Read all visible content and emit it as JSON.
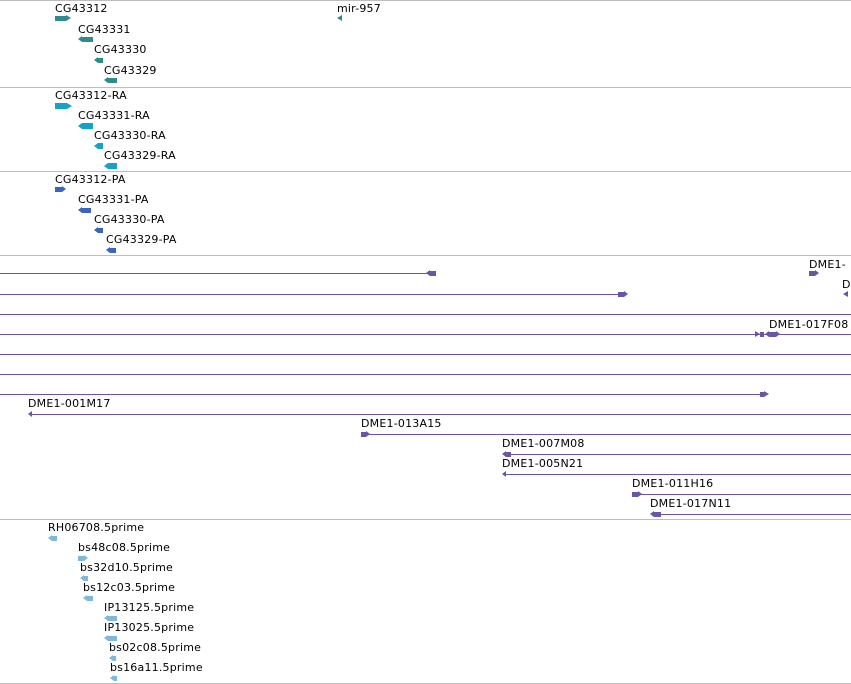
{
  "colors": {
    "gene": "#2f8c8a",
    "transcript": "#16a1c7",
    "protein": "#3a63c4",
    "clone": "#6a55a4",
    "est": "#7fb8de",
    "divider": "#bdbdbd"
  },
  "genes": {
    "items": [
      {
        "label": "CG43312",
        "icon": "gene-arrow-right-icon"
      },
      {
        "label": "CG43331",
        "icon": "gene-arrow-left-icon"
      },
      {
        "label": "CG43330",
        "icon": "gene-arrow-left-icon"
      },
      {
        "label": "CG43329",
        "icon": "gene-arrow-left-icon"
      },
      {
        "label": "mir-957",
        "icon": "gene-arrow-left-icon"
      }
    ]
  },
  "transcripts": {
    "items": [
      {
        "label": "CG43312-RA"
      },
      {
        "label": "CG43331-RA"
      },
      {
        "label": "CG43330-RA"
      },
      {
        "label": "CG43329-RA"
      }
    ]
  },
  "proteins": {
    "items": [
      {
        "label": "CG43312-PA"
      },
      {
        "label": "CG43331-PA"
      },
      {
        "label": "CG43330-PA"
      },
      {
        "label": "CG43329-PA"
      }
    ]
  },
  "clones": {
    "items": [
      {
        "label": "DME1-"
      },
      {
        "label": "D"
      },
      {
        "label": "DME1-017F08"
      },
      {
        "label": "DME1-001M17"
      },
      {
        "label": "DME1-013A15"
      },
      {
        "label": "DME1-007M08"
      },
      {
        "label": "DME1-005N21"
      },
      {
        "label": "DME1-011H16"
      },
      {
        "label": "DME1-017N11"
      }
    ]
  },
  "ests": {
    "items": [
      {
        "label": "RH06708.5prime"
      },
      {
        "label": "bs48c08.5prime"
      },
      {
        "label": "bs32d10.5prime"
      },
      {
        "label": "bs12c03.5prime"
      },
      {
        "label": "IP13125.5prime"
      },
      {
        "label": "IP13025.5prime"
      },
      {
        "label": "bs02c08.5prime"
      },
      {
        "label": "bs16a11.5prime"
      }
    ]
  }
}
